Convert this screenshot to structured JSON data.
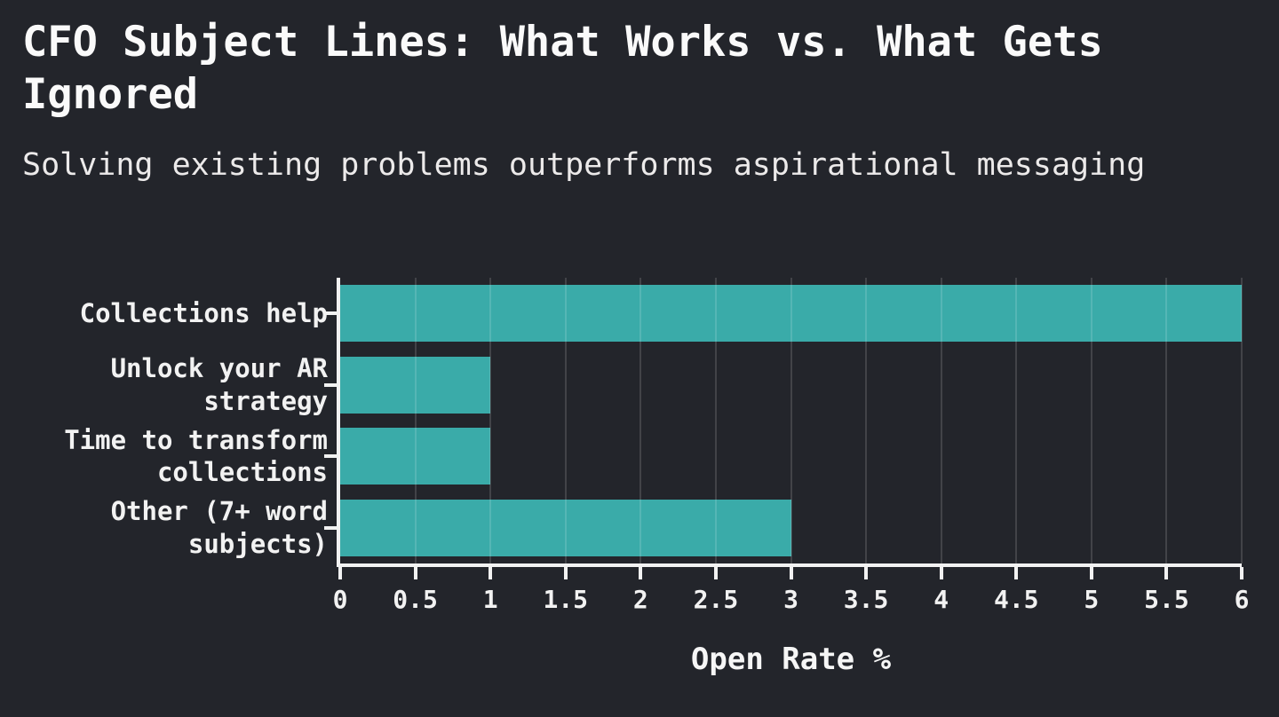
{
  "page": {
    "title": "CFO Subject Lines: What Works vs. What Gets Ignored",
    "subtitle": "Solving existing problems outperforms aspirational messaging",
    "background_color": "#23252b",
    "text_color": "#f2f2f2"
  },
  "chart_data": {
    "type": "bar",
    "orientation": "horizontal",
    "title": "CFO Subject Lines: What Works vs. What Gets Ignored",
    "subtitle": "Solving existing problems outperforms aspirational messaging",
    "categories": [
      "Collections help",
      "Unlock your AR strategy",
      "Time to transform collections",
      "Other (7+ word subjects)"
    ],
    "values": [
      6,
      1,
      1,
      3
    ],
    "xlabel": "Open Rate %",
    "ylabel": "",
    "xlim": [
      0,
      6
    ],
    "xticks": [
      0,
      0.5,
      1,
      1.5,
      2,
      2.5,
      3,
      3.5,
      4,
      4.5,
      5,
      5.5,
      6
    ],
    "xtick_labels": [
      "0",
      "0.5",
      "1",
      "1.5",
      "2",
      "2.5",
      "3",
      "3.5",
      "4",
      "4.5",
      "5",
      "5.5",
      "6"
    ],
    "grid": true,
    "gridline_interval": 0.5,
    "legend": false,
    "bar_color": "#3aaba9",
    "axis_color": "#f2f2f2",
    "gridline_color": "rgba(255,255,255,0.14)"
  }
}
